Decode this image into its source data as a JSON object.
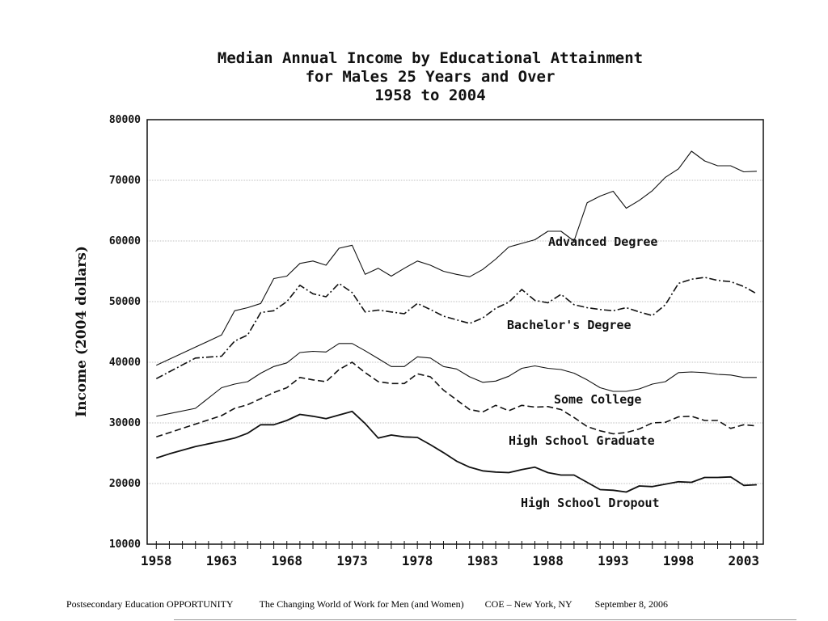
{
  "chart_data": {
    "type": "line",
    "title": [
      "Median Annual Income by Educational Attainment",
      "for Males 25 Years and Over",
      "1958 to 2004"
    ],
    "ylabel": "Income (2004 dollars)",
    "xlabel": "",
    "ylim": [
      10000,
      80000
    ],
    "xlim": [
      1958,
      2004
    ],
    "yticks": [
      "10000",
      "20000",
      "30000",
      "40000",
      "50000",
      "60000",
      "70000",
      "80000"
    ],
    "xticks": [
      "1958",
      "1963",
      "1968",
      "1973",
      "1978",
      "1983",
      "1988",
      "1993",
      "1998",
      "2003"
    ],
    "grid": "horizontal",
    "series": [
      {
        "name": "Advanced Degree",
        "dash": "solid",
        "x": [
          1958,
          1961,
          1963,
          1964,
          1965,
          1966,
          1967,
          1968,
          1969,
          1970,
          1971,
          1972,
          1973,
          1974,
          1975,
          1976,
          1977,
          1978,
          1979,
          1980,
          1981,
          1982,
          1983,
          1984,
          1985,
          1986,
          1987,
          1988,
          1989,
          1990,
          1991,
          1992,
          1993,
          1994,
          1995,
          1996,
          1997,
          1998,
          1999,
          2000,
          2001,
          2002,
          2003,
          2004
        ],
        "values": [
          39500,
          42500,
          44500,
          48500,
          49000,
          49700,
          53800,
          54200,
          56300,
          56700,
          56000,
          58800,
          59300,
          54500,
          55500,
          54200,
          55500,
          56700,
          56000,
          55000,
          54500,
          54100,
          55300,
          57000,
          59000,
          59600,
          60200,
          61600,
          61600,
          60000,
          66300,
          67400,
          68200,
          65400,
          66700,
          68300,
          70500,
          71900,
          74800,
          73200,
          72400,
          72400,
          71400,
          71500
        ]
      },
      {
        "name": "Bachelor's Degree",
        "dash": "dashdot",
        "x": [
          1958,
          1961,
          1963,
          1964,
          1965,
          1966,
          1967,
          1968,
          1969,
          1970,
          1971,
          1972,
          1973,
          1974,
          1975,
          1976,
          1977,
          1978,
          1979,
          1980,
          1981,
          1982,
          1983,
          1984,
          1985,
          1986,
          1987,
          1988,
          1989,
          1990,
          1991,
          1992,
          1993,
          1994,
          1995,
          1996,
          1997,
          1998,
          1999,
          2000,
          2001,
          2002,
          2003,
          2004
        ],
        "values": [
          37300,
          40700,
          41000,
          43500,
          44500,
          48200,
          48500,
          50000,
          52700,
          51300,
          50800,
          53000,
          51500,
          48300,
          48600,
          48300,
          48000,
          49700,
          48700,
          47600,
          47000,
          46400,
          47300,
          48900,
          49900,
          52000,
          50200,
          49800,
          51200,
          49500,
          49000,
          48700,
          48500,
          49000,
          48300,
          47700,
          49500,
          53000,
          53700,
          54000,
          53500,
          53300,
          52500,
          51300
        ]
      },
      {
        "name": "Some College",
        "dash": "solid",
        "x": [
          1958,
          1961,
          1963,
          1964,
          1965,
          1966,
          1967,
          1968,
          1969,
          1970,
          1971,
          1972,
          1973,
          1974,
          1975,
          1976,
          1977,
          1978,
          1979,
          1980,
          1981,
          1982,
          1983,
          1984,
          1985,
          1986,
          1987,
          1988,
          1989,
          1990,
          1991,
          1992,
          1993,
          1994,
          1995,
          1996,
          1997,
          1998,
          1999,
          2000,
          2001,
          2002,
          2003,
          2004
        ],
        "values": [
          31100,
          32400,
          35800,
          36400,
          36800,
          38200,
          39300,
          39900,
          41600,
          41800,
          41700,
          43100,
          43100,
          41900,
          40600,
          39300,
          39300,
          40900,
          40700,
          39300,
          38900,
          37600,
          36700,
          36900,
          37700,
          39000,
          39400,
          39000,
          38800,
          38200,
          37100,
          35800,
          35200,
          35200,
          35600,
          36400,
          36800,
          38300,
          38400,
          38300,
          38000,
          37900,
          37500,
          37500
        ]
      },
      {
        "name": "High School Graduate",
        "dash": "dashed",
        "x": [
          1958,
          1961,
          1963,
          1964,
          1965,
          1966,
          1967,
          1968,
          1969,
          1970,
          1971,
          1972,
          1973,
          1974,
          1975,
          1976,
          1977,
          1978,
          1979,
          1980,
          1981,
          1982,
          1983,
          1984,
          1985,
          1986,
          1987,
          1988,
          1989,
          1990,
          1991,
          1992,
          1993,
          1994,
          1995,
          1996,
          1997,
          1998,
          1999,
          2000,
          2001,
          2002,
          2003,
          2004
        ],
        "values": [
          27700,
          29800,
          31200,
          32400,
          33000,
          34000,
          35000,
          35800,
          37500,
          37100,
          36800,
          38800,
          40000,
          38300,
          36800,
          36500,
          36500,
          38100,
          37600,
          35400,
          33800,
          32200,
          31800,
          32900,
          32000,
          32900,
          32600,
          32700,
          32200,
          30900,
          29400,
          28700,
          28200,
          28400,
          29000,
          30000,
          30100,
          31000,
          31100,
          30400,
          30400,
          29100,
          29700,
          29500
        ]
      },
      {
        "name": "High School Dropout",
        "dash": "solid-bold",
        "x": [
          1958,
          1959,
          1961,
          1963,
          1964,
          1965,
          1966,
          1967,
          1968,
          1969,
          1970,
          1971,
          1972,
          1973,
          1974,
          1975,
          1976,
          1977,
          1978,
          1979,
          1980,
          1981,
          1982,
          1983,
          1984,
          1985,
          1986,
          1987,
          1988,
          1989,
          1990,
          1991,
          1992,
          1993,
          1994,
          1995,
          1996,
          1997,
          1998,
          1999,
          2000,
          2001,
          2002,
          2003,
          2004
        ],
        "values": [
          24200,
          24900,
          26100,
          27000,
          27500,
          28300,
          29700,
          29700,
          30400,
          31400,
          31100,
          30700,
          31300,
          31900,
          29900,
          27500,
          28000,
          27700,
          27600,
          26400,
          25100,
          23700,
          22700,
          22100,
          21900,
          21800,
          22300,
          22700,
          21800,
          21400,
          21400,
          20200,
          19000,
          18900,
          18600,
          19600,
          19500,
          19900,
          20300,
          20200,
          21000,
          21000,
          21100,
          19700,
          19800
        ]
      }
    ],
    "series_labels": [
      "Advanced Degree",
      "Bachelor's Degree",
      "Some College",
      "High School Graduate",
      "High School Dropout"
    ]
  },
  "footer": {
    "left": "Postsecondary Education OPPORTUNITY",
    "title": "The Changing World of Work for Men (and Women)",
    "venue": "COE – New York, NY",
    "date": "September 8, 2006"
  }
}
